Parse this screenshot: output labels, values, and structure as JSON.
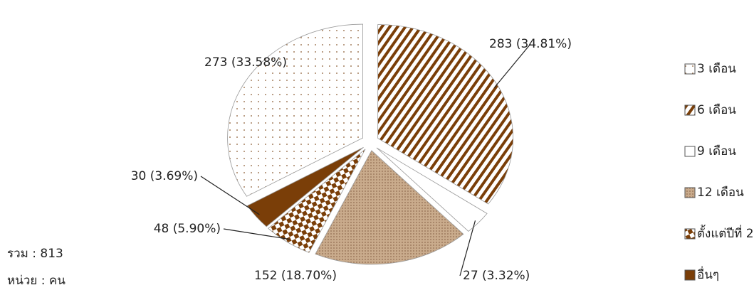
{
  "chart_data": {
    "type": "pie",
    "categories": [
      "3 เดือน",
      "6 เดือน",
      "9 เดือน",
      "12 เดือน",
      "ตั้งแต่ปีที่ 2",
      "อื่นๆ"
    ],
    "values": [
      273,
      283,
      27,
      152,
      48,
      30
    ],
    "value_labels": [
      "273 (33.58%)",
      "283 (34.81%)",
      "27 (3.32%)",
      "152 (18.70%)",
      "48 (5.90%)",
      "30 (3.69%)"
    ],
    "colors": [
      "#ffffff",
      "#ffffff",
      "#ffffff",
      "#c9ab8c",
      "#ffffff",
      "#7a3e08"
    ],
    "legend": "right",
    "notes": [
      "รวม : 813",
      "หน่วย : คน"
    ]
  }
}
